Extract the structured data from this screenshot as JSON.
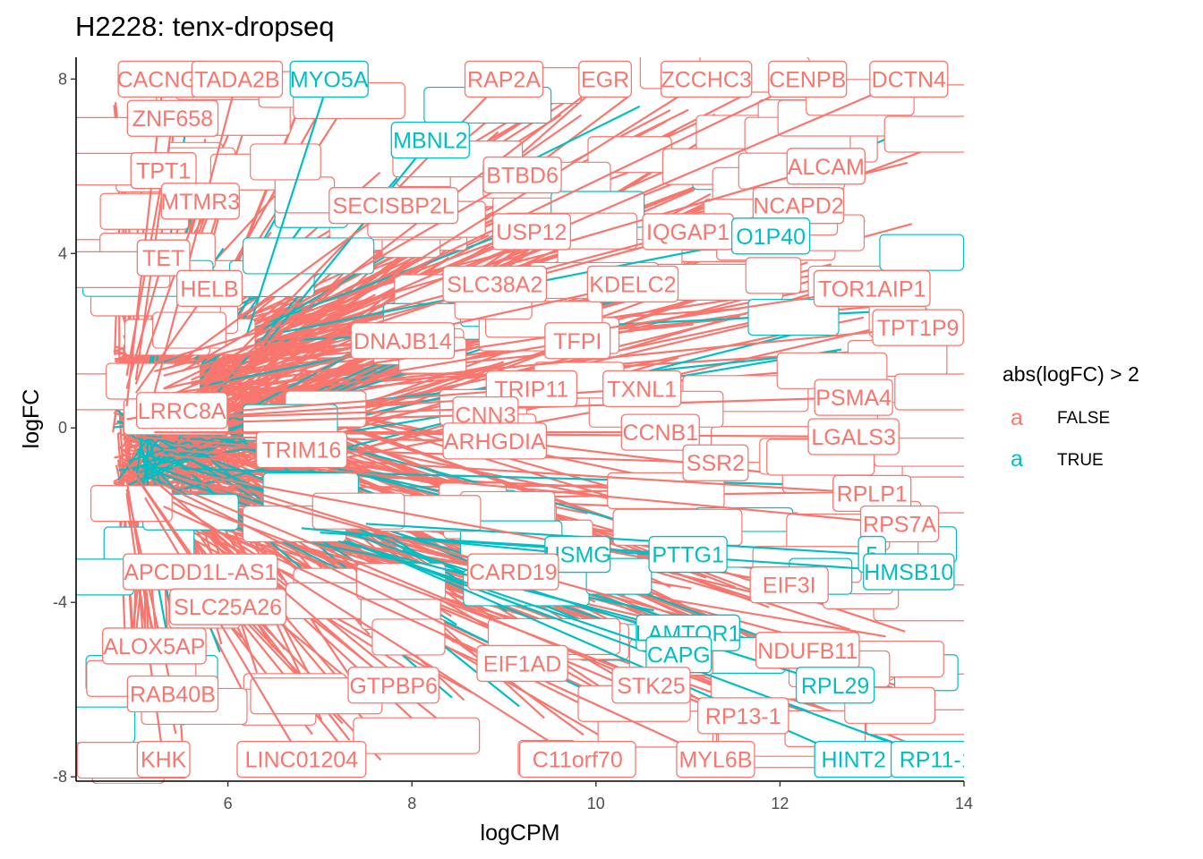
{
  "chart_data": {
    "type": "scatter",
    "title": "H2228: tenx-dropseq",
    "xlabel": "logCPM",
    "ylabel": "logFC",
    "xlim": [
      4.35,
      14
    ],
    "ylim": [
      -8.1,
      8.5
    ],
    "x_ticks": [
      6,
      8,
      10,
      12,
      14
    ],
    "y_ticks": [
      -8,
      -4,
      0,
      4,
      8
    ],
    "grid": false,
    "legend": {
      "title": "abs(logFC) > 2",
      "position": "right",
      "key_glyph": "a",
      "entries": [
        {
          "label": "FALSE",
          "color": "#F8766D"
        },
        {
          "label": "TRUE",
          "color": "#00BFC4"
        }
      ]
    },
    "fan": {
      "false_count": 360,
      "true_count": 44,
      "x_range": [
        4.75,
        13.8
      ],
      "y_spread": [
        -1.9,
        1.9
      ]
    },
    "labels": [
      {
        "text": "CACNG4",
        "x": 5.3,
        "y": 8.0,
        "lx": 4.9,
        "ly": 0.5,
        "group": "FALSE"
      },
      {
        "text": "TADA2B",
        "x": 6.1,
        "y": 8.0,
        "lx": 5.2,
        "ly": 0.8,
        "group": "FALSE"
      },
      {
        "text": "MYO5A",
        "x": 7.1,
        "y": 8.0,
        "lx": 6.2,
        "ly": 2.1,
        "group": "TRUE"
      },
      {
        "text": "RAP2A",
        "x": 9.0,
        "y": 8.0,
        "lx": 5.6,
        "ly": 0.6,
        "group": "FALSE"
      },
      {
        "text": "EGR",
        "x": 10.1,
        "y": 8.0,
        "lx": 5.4,
        "ly": 0.4,
        "group": "FALSE"
      },
      {
        "text": "ZCCHC3",
        "x": 11.2,
        "y": 8.0,
        "lx": 5.7,
        "ly": 0.7,
        "group": "FALSE"
      },
      {
        "text": "CENPB",
        "x": 12.3,
        "y": 8.0,
        "lx": 5.3,
        "ly": 0.9,
        "group": "FALSE"
      },
      {
        "text": "DCTN4",
        "x": 13.4,
        "y": 8.0,
        "lx": 5.1,
        "ly": 0.5,
        "group": "FALSE"
      },
      {
        "text": "ZNF658",
        "x": 5.4,
        "y": 7.1,
        "lx": 5.0,
        "ly": 1.1,
        "group": "FALSE"
      },
      {
        "text": "MBNL2",
        "x": 8.2,
        "y": 6.6,
        "lx": 6.4,
        "ly": 1.9,
        "group": "TRUE"
      },
      {
        "text": "TPT1",
        "x": 5.3,
        "y": 5.9,
        "lx": 4.9,
        "ly": 1.2,
        "group": "FALSE"
      },
      {
        "text": "MTMR3",
        "x": 5.7,
        "y": 5.2,
        "lx": 5.0,
        "ly": 1.0,
        "group": "FALSE"
      },
      {
        "text": "BTBD6",
        "x": 9.2,
        "y": 5.8,
        "lx": 5.5,
        "ly": 1.3,
        "group": "FALSE"
      },
      {
        "text": "SECISBP2L",
        "x": 7.8,
        "y": 5.1,
        "lx": 5.4,
        "ly": 1.4,
        "group": "FALSE"
      },
      {
        "text": "ALCAM",
        "x": 12.5,
        "y": 6.0,
        "lx": 5.2,
        "ly": 1.5,
        "group": "FALSE"
      },
      {
        "text": "NCAPD2",
        "x": 12.2,
        "y": 5.1,
        "lx": 5.3,
        "ly": 1.2,
        "group": "FALSE"
      },
      {
        "text": "USP12",
        "x": 9.3,
        "y": 4.5,
        "lx": 5.6,
        "ly": 1.1,
        "group": "FALSE"
      },
      {
        "text": "IQGAP1",
        "x": 11.0,
        "y": 4.5,
        "lx": 5.2,
        "ly": 1.3,
        "group": "FALSE"
      },
      {
        "text": "O1P40",
        "x": 11.9,
        "y": 4.4,
        "lx": 6.6,
        "ly": 2.2,
        "group": "TRUE"
      },
      {
        "text": "TET",
        "x": 5.3,
        "y": 3.9,
        "lx": 4.9,
        "ly": 0.9,
        "group": "FALSE"
      },
      {
        "text": "HELB",
        "x": 5.8,
        "y": 3.2,
        "lx": 5.0,
        "ly": 0.8,
        "group": "FALSE"
      },
      {
        "text": "SLC38A2",
        "x": 8.9,
        "y": 3.3,
        "lx": 5.6,
        "ly": 1.0,
        "group": "FALSE"
      },
      {
        "text": "KDELC2",
        "x": 10.4,
        "y": 3.3,
        "lx": 5.3,
        "ly": 0.9,
        "group": "FALSE"
      },
      {
        "text": "TOR1AIP1",
        "x": 13.0,
        "y": 3.2,
        "lx": 5.1,
        "ly": 0.7,
        "group": "FALSE"
      },
      {
        "text": "TPT1P9",
        "x": 13.5,
        "y": 2.3,
        "lx": 5.2,
        "ly": 0.6,
        "group": "FALSE"
      },
      {
        "text": "DNAJB14",
        "x": 7.9,
        "y": 2.0,
        "lx": 5.4,
        "ly": 0.5,
        "group": "FALSE"
      },
      {
        "text": "TFPI",
        "x": 9.8,
        "y": 2.0,
        "lx": 5.3,
        "ly": 0.4,
        "group": "FALSE"
      },
      {
        "text": "LRRC8A",
        "x": 5.5,
        "y": 0.4,
        "lx": 4.9,
        "ly": 0.2,
        "group": "FALSE"
      },
      {
        "text": "TRIP11",
        "x": 9.3,
        "y": 0.9,
        "lx": 5.5,
        "ly": 0.3,
        "group": "FALSE"
      },
      {
        "text": "TXNL1",
        "x": 10.5,
        "y": 0.9,
        "lx": 5.4,
        "ly": 0.2,
        "group": "FALSE"
      },
      {
        "text": "PSMA4",
        "x": 12.8,
        "y": 0.7,
        "lx": 5.1,
        "ly": 0.2,
        "group": "FALSE"
      },
      {
        "text": "CNN3",
        "x": 8.8,
        "y": 0.3,
        "lx": 5.4,
        "ly": 0.1,
        "group": "FALSE"
      },
      {
        "text": "CCNB1",
        "x": 10.7,
        "y": -0.1,
        "lx": 5.6,
        "ly": -0.1,
        "group": "FALSE"
      },
      {
        "text": "ARHGDIA",
        "x": 8.9,
        "y": -0.3,
        "lx": 5.5,
        "ly": -0.2,
        "group": "FALSE"
      },
      {
        "text": "LGALS3",
        "x": 12.8,
        "y": -0.2,
        "lx": 5.2,
        "ly": -0.1,
        "group": "FALSE"
      },
      {
        "text": "TRIM16",
        "x": 6.8,
        "y": -0.5,
        "lx": 5.0,
        "ly": -0.2,
        "group": "FALSE"
      },
      {
        "text": "SSR2",
        "x": 11.3,
        "y": -0.8,
        "lx": 5.4,
        "ly": -0.4,
        "group": "FALSE"
      },
      {
        "text": "RPLP1",
        "x": 13.0,
        "y": -1.5,
        "lx": 5.3,
        "ly": -0.5,
        "group": "FALSE"
      },
      {
        "text": "RPS7A",
        "x": 13.3,
        "y": -2.2,
        "lx": 5.2,
        "ly": -0.6,
        "group": "FALSE"
      },
      {
        "text": "USMG",
        "x": 9.8,
        "y": -2.9,
        "lx": 6.8,
        "ly": -2.3,
        "group": "TRUE"
      },
      {
        "text": "PTTG1",
        "x": 11.0,
        "y": -2.9,
        "lx": 7.0,
        "ly": -2.4,
        "group": "TRUE"
      },
      {
        "text": "5",
        "x": 13.0,
        "y": -2.9,
        "lx": 7.5,
        "ly": -2.2,
        "group": "TRUE"
      },
      {
        "text": "APCDD1L-AS1",
        "x": 5.7,
        "y": -3.3,
        "lx": 4.9,
        "ly": -0.8,
        "group": "FALSE"
      },
      {
        "text": "CARD19",
        "x": 9.1,
        "y": -3.3,
        "lx": 5.4,
        "ly": -0.9,
        "group": "FALSE"
      },
      {
        "text": "HMSB10",
        "x": 13.4,
        "y": -3.3,
        "lx": 7.8,
        "ly": -2.5,
        "group": "TRUE"
      },
      {
        "text": "EIF3I",
        "x": 12.1,
        "y": -3.6,
        "lx": 5.5,
        "ly": -1.0,
        "group": "FALSE"
      },
      {
        "text": "SLC25A26",
        "x": 6.0,
        "y": -4.1,
        "lx": 5.0,
        "ly": -1.1,
        "group": "FALSE"
      },
      {
        "text": "LAMTOR1",
        "x": 11.0,
        "y": -4.7,
        "lx": 7.2,
        "ly": -2.6,
        "group": "TRUE"
      },
      {
        "text": "ALOX5AP",
        "x": 5.2,
        "y": -5.0,
        "lx": 4.9,
        "ly": -1.2,
        "group": "FALSE"
      },
      {
        "text": "NDUFB11",
        "x": 12.3,
        "y": -5.1,
        "lx": 5.4,
        "ly": -1.1,
        "group": "FALSE"
      },
      {
        "text": "EIF1AD",
        "x": 9.2,
        "y": -5.4,
        "lx": 5.3,
        "ly": -1.3,
        "group": "FALSE"
      },
      {
        "text": "CAPG",
        "x": 10.9,
        "y": -5.2,
        "lx": 7.4,
        "ly": -2.7,
        "group": "TRUE"
      },
      {
        "text": "RAB40B",
        "x": 5.4,
        "y": -6.1,
        "lx": 4.9,
        "ly": -1.4,
        "group": "FALSE"
      },
      {
        "text": "GTPBP6",
        "x": 7.8,
        "y": -5.9,
        "lx": 5.2,
        "ly": -1.2,
        "group": "FALSE"
      },
      {
        "text": "STK25",
        "x": 10.6,
        "y": -5.9,
        "lx": 5.5,
        "ly": -1.4,
        "group": "FALSE"
      },
      {
        "text": "RPL29",
        "x": 12.6,
        "y": -5.9,
        "lx": 7.9,
        "ly": -2.8,
        "group": "TRUE"
      },
      {
        "text": "RP13-1",
        "x": 11.6,
        "y": -6.6,
        "lx": 5.4,
        "ly": -1.6,
        "group": "FALSE"
      },
      {
        "text": "KHK",
        "x": 5.3,
        "y": -7.6,
        "lx": 4.9,
        "ly": -1.5,
        "group": "FALSE"
      },
      {
        "text": "LINC01204",
        "x": 6.8,
        "y": -7.6,
        "lx": 5.1,
        "ly": -1.6,
        "group": "FALSE"
      },
      {
        "text": "C11orf70",
        "x": 9.8,
        "y": -7.6,
        "lx": 5.4,
        "ly": -1.7,
        "group": "FALSE"
      },
      {
        "text": "MYL6B",
        "x": 11.3,
        "y": -7.6,
        "lx": 5.3,
        "ly": -1.8,
        "group": "FALSE"
      },
      {
        "text": "HINT2",
        "x": 12.8,
        "y": -7.6,
        "lx": 7.7,
        "ly": -2.9,
        "group": "TRUE"
      },
      {
        "text": "RP11-1",
        "x": 13.7,
        "y": -7.6,
        "lx": 7.3,
        "ly": -2.6,
        "group": "TRUE"
      }
    ]
  }
}
